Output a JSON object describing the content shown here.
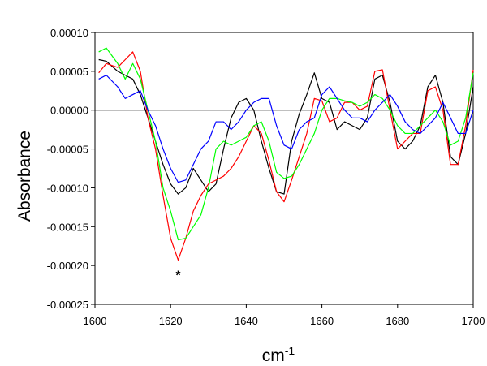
{
  "chart_data": {
    "type": "line",
    "title": "",
    "xlabel": "cm",
    "xlabel_superscript": "-1",
    "ylabel": "Absorbance",
    "xlim": [
      1600,
      1700
    ],
    "ylim": [
      -0.00025,
      0.0001
    ],
    "x_ticks": [
      1600,
      1620,
      1640,
      1660,
      1680,
      1700
    ],
    "y_ticks": [
      -0.00025,
      -0.0002,
      -0.00015,
      -0.0001,
      -5e-05,
      0,
      5e-05,
      0.0001
    ],
    "x_tick_labels": [
      "1600",
      "1620",
      "1640",
      "1660",
      "1680",
      "1700"
    ],
    "y_tick_labels": [
      "-0.00025",
      "-0.00020",
      "-0.00015",
      "-0.00010",
      "-0.00005",
      "0.00000",
      "0.00005",
      "0.00010"
    ],
    "grid": false,
    "legend": "none",
    "annotations": [
      {
        "text": "*",
        "x": 1622,
        "y": -0.00021
      }
    ],
    "series": [
      {
        "color": "#000000",
        "points": [
          [
            1601,
            6.5e-05
          ],
          [
            1603,
            6.3e-05
          ],
          [
            1606,
            5e-05
          ],
          [
            1608,
            4.5e-05
          ],
          [
            1610,
            4e-05
          ],
          [
            1612,
            2e-05
          ],
          [
            1614,
            -1e-05
          ],
          [
            1616,
            -4e-05
          ],
          [
            1618,
            -7e-05
          ],
          [
            1620,
            -9.5e-05
          ],
          [
            1622,
            -0.000108
          ],
          [
            1624,
            -0.0001
          ],
          [
            1626,
            -7.5e-05
          ],
          [
            1628,
            -9e-05
          ],
          [
            1630,
            -0.000105
          ],
          [
            1632,
            -9.5e-05
          ],
          [
            1634,
            -5e-05
          ],
          [
            1636,
            -1e-05
          ],
          [
            1638,
            1e-05
          ],
          [
            1640,
            1.5e-05
          ],
          [
            1642,
            0.0
          ],
          [
            1644,
            -4e-05
          ],
          [
            1646,
            -7.5e-05
          ],
          [
            1648,
            -0.000105
          ],
          [
            1650,
            -0.000108
          ],
          [
            1652,
            -4e-05
          ],
          [
            1654,
            -5e-06
          ],
          [
            1656,
            2e-05
          ],
          [
            1658,
            4.8e-05
          ],
          [
            1660,
            1.5e-05
          ],
          [
            1662,
            1e-05
          ],
          [
            1664,
            -2.5e-05
          ],
          [
            1666,
            -1.5e-05
          ],
          [
            1668,
            -2e-05
          ],
          [
            1670,
            -2.5e-05
          ],
          [
            1672,
            -1e-05
          ],
          [
            1674,
            4e-05
          ],
          [
            1676,
            4.5e-05
          ],
          [
            1678,
            1e-05
          ],
          [
            1680,
            -4e-05
          ],
          [
            1682,
            -5e-05
          ],
          [
            1684,
            -4e-05
          ],
          [
            1686,
            -2e-05
          ],
          [
            1688,
            3e-05
          ],
          [
            1690,
            4.5e-05
          ],
          [
            1692,
            1e-05
          ],
          [
            1694,
            -6e-05
          ],
          [
            1696,
            -7e-05
          ],
          [
            1698,
            -3e-05
          ],
          [
            1700,
            3e-05
          ]
        ]
      },
      {
        "color": "#ff0000",
        "points": [
          [
            1601,
            4.8e-05
          ],
          [
            1603,
            6e-05
          ],
          [
            1606,
            5.5e-05
          ],
          [
            1608,
            6.5e-05
          ],
          [
            1610,
            7.5e-05
          ],
          [
            1612,
            5e-05
          ],
          [
            1614,
            -1e-05
          ],
          [
            1616,
            -5e-05
          ],
          [
            1618,
            -0.00011
          ],
          [
            1620,
            -0.000165
          ],
          [
            1622,
            -0.000193
          ],
          [
            1624,
            -0.000165
          ],
          [
            1626,
            -0.00013
          ],
          [
            1628,
            -0.00011
          ],
          [
            1630,
            -9.5e-05
          ],
          [
            1632,
            -9e-05
          ],
          [
            1634,
            -8.5e-05
          ],
          [
            1636,
            -7.5e-05
          ],
          [
            1638,
            -6e-05
          ],
          [
            1640,
            -4e-05
          ],
          [
            1642,
            -2e-05
          ],
          [
            1644,
            -3e-05
          ],
          [
            1646,
            -6.5e-05
          ],
          [
            1648,
            -0.000105
          ],
          [
            1650,
            -0.000118
          ],
          [
            1652,
            -9e-05
          ],
          [
            1654,
            -6e-05
          ],
          [
            1656,
            -3e-05
          ],
          [
            1658,
            1.5e-05
          ],
          [
            1660,
            1.2e-05
          ],
          [
            1662,
            -1.5e-05
          ],
          [
            1664,
            -1e-05
          ],
          [
            1666,
            1e-05
          ],
          [
            1668,
            1e-05
          ],
          [
            1670,
            0.0
          ],
          [
            1672,
            5e-06
          ],
          [
            1674,
            5e-05
          ],
          [
            1676,
            5.2e-05
          ],
          [
            1678,
            0.0
          ],
          [
            1680,
            -5e-05
          ],
          [
            1682,
            -4e-05
          ],
          [
            1684,
            -3e-05
          ],
          [
            1686,
            -3e-05
          ],
          [
            1688,
            2.5e-05
          ],
          [
            1690,
            3e-05
          ],
          [
            1692,
            0.0
          ],
          [
            1694,
            -7e-05
          ],
          [
            1696,
            -7e-05
          ],
          [
            1698,
            -2e-05
          ],
          [
            1700,
            5.2e-05
          ]
        ]
      },
      {
        "color": "#00ff00",
        "points": [
          [
            1601,
            7.5e-05
          ],
          [
            1603,
            8e-05
          ],
          [
            1606,
            6e-05
          ],
          [
            1608,
            4e-05
          ],
          [
            1610,
            6e-05
          ],
          [
            1612,
            4e-05
          ],
          [
            1614,
            0.0
          ],
          [
            1616,
            -4e-05
          ],
          [
            1618,
            -0.0001
          ],
          [
            1620,
            -0.00013
          ],
          [
            1622,
            -0.000167
          ],
          [
            1624,
            -0.000165
          ],
          [
            1626,
            -0.00015
          ],
          [
            1628,
            -0.000135
          ],
          [
            1630,
            -0.0001
          ],
          [
            1632,
            -5e-05
          ],
          [
            1634,
            -4e-05
          ],
          [
            1636,
            -4.5e-05
          ],
          [
            1638,
            -4e-05
          ],
          [
            1640,
            -3.5e-05
          ],
          [
            1642,
            -2e-05
          ],
          [
            1644,
            -1.5e-05
          ],
          [
            1646,
            -4e-05
          ],
          [
            1648,
            -8e-05
          ],
          [
            1650,
            -8.8e-05
          ],
          [
            1652,
            -8.5e-05
          ],
          [
            1654,
            -7e-05
          ],
          [
            1656,
            -5e-05
          ],
          [
            1658,
            -3e-05
          ],
          [
            1660,
            0.0
          ],
          [
            1662,
            1.5e-05
          ],
          [
            1664,
            1.5e-05
          ],
          [
            1666,
            1.2e-05
          ],
          [
            1668,
            1e-05
          ],
          [
            1670,
            5e-06
          ],
          [
            1672,
            1e-05
          ],
          [
            1674,
            2e-05
          ],
          [
            1676,
            1.5e-05
          ],
          [
            1678,
            0.0
          ],
          [
            1680,
            -2e-05
          ],
          [
            1682,
            -3e-05
          ],
          [
            1684,
            -3e-05
          ],
          [
            1686,
            -2e-05
          ],
          [
            1688,
            -1e-05
          ],
          [
            1690,
            0.0
          ],
          [
            1692,
            -1.5e-05
          ],
          [
            1694,
            -4.5e-05
          ],
          [
            1696,
            -4e-05
          ],
          [
            1698,
            -1e-05
          ],
          [
            1700,
            4.8e-05
          ]
        ]
      },
      {
        "color": "#0000ff",
        "points": [
          [
            1601,
            4e-05
          ],
          [
            1603,
            4.5e-05
          ],
          [
            1606,
            3e-05
          ],
          [
            1608,
            1.5e-05
          ],
          [
            1610,
            2e-05
          ],
          [
            1612,
            2.5e-05
          ],
          [
            1614,
            0.0
          ],
          [
            1616,
            -2e-05
          ],
          [
            1618,
            -5e-05
          ],
          [
            1620,
            -7.5e-05
          ],
          [
            1622,
            -9.3e-05
          ],
          [
            1624,
            -9e-05
          ],
          [
            1626,
            -7e-05
          ],
          [
            1628,
            -5e-05
          ],
          [
            1630,
            -4e-05
          ],
          [
            1632,
            -1.5e-05
          ],
          [
            1634,
            -1.5e-05
          ],
          [
            1636,
            -2.5e-05
          ],
          [
            1638,
            -1.5e-05
          ],
          [
            1640,
            0.0
          ],
          [
            1642,
            1e-05
          ],
          [
            1644,
            1.5e-05
          ],
          [
            1646,
            1.5e-05
          ],
          [
            1648,
            -2e-05
          ],
          [
            1650,
            -4.5e-05
          ],
          [
            1652,
            -5e-05
          ],
          [
            1654,
            -2.5e-05
          ],
          [
            1656,
            -1.5e-05
          ],
          [
            1658,
            -1e-05
          ],
          [
            1660,
            2e-05
          ],
          [
            1662,
            3e-05
          ],
          [
            1664,
            1.5e-05
          ],
          [
            1666,
            0.0
          ],
          [
            1668,
            -1e-05
          ],
          [
            1670,
            -1e-05
          ],
          [
            1672,
            -1.5e-05
          ],
          [
            1674,
            0.0
          ],
          [
            1676,
            1e-05
          ],
          [
            1678,
            2e-05
          ],
          [
            1680,
            5e-06
          ],
          [
            1682,
            -1.5e-05
          ],
          [
            1684,
            -2.5e-05
          ],
          [
            1686,
            -3e-05
          ],
          [
            1688,
            -2e-05
          ],
          [
            1690,
            -1e-05
          ],
          [
            1692,
            1e-05
          ],
          [
            1694,
            -1e-05
          ],
          [
            1696,
            -3e-05
          ],
          [
            1698,
            -3e-05
          ],
          [
            1700,
            0.0
          ]
        ]
      }
    ]
  }
}
